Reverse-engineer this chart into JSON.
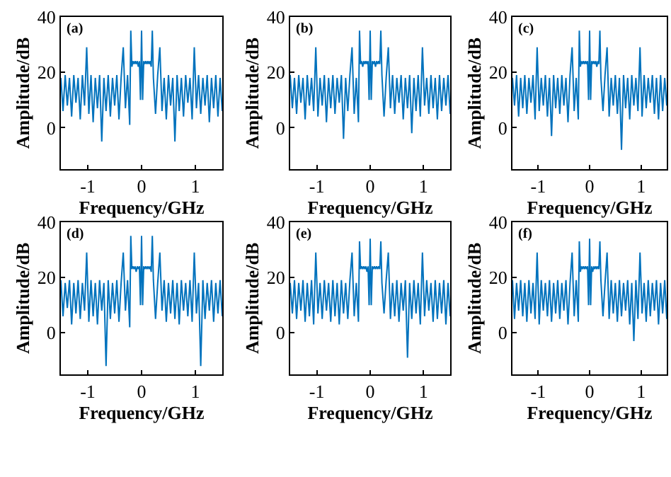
{
  "chart_data": [
    {
      "type": "line",
      "color": "#0072bd",
      "xlabel": "Frequency/GHz",
      "ylabel": "Amplitude/dB",
      "xlim": [
        -1.5,
        1.5
      ],
      "ylim": [
        -15,
        40
      ],
      "xticks": [
        -1,
        0,
        1
      ],
      "yticks": [
        0,
        20,
        40
      ],
      "annotations": [
        "(a)"
      ],
      "x": [
        -1.5,
        -1.46,
        -1.42,
        -1.38,
        -1.34,
        -1.3,
        -1.26,
        -1.22,
        -1.18,
        -1.14,
        -1.1,
        -1.06,
        -1.02,
        -0.98,
        -0.94,
        -0.9,
        -0.86,
        -0.82,
        -0.78,
        -0.74,
        -0.7,
        -0.66,
        -0.62,
        -0.58,
        -0.54,
        -0.5,
        -0.46,
        -0.42,
        -0.38,
        -0.34,
        -0.3,
        -0.26,
        -0.22,
        -0.2,
        -0.18,
        -0.16,
        -0.14,
        -0.12,
        -0.1,
        -0.08,
        -0.06,
        -0.04,
        -0.02,
        0,
        0.02,
        0.04,
        0.06,
        0.08,
        0.1,
        0.12,
        0.14,
        0.16,
        0.18,
        0.2,
        0.22,
        0.26,
        0.3,
        0.34,
        0.38,
        0.42,
        0.46,
        0.5,
        0.54,
        0.58,
        0.62,
        0.66,
        0.7,
        0.74,
        0.78,
        0.82,
        0.86,
        0.9,
        0.94,
        0.98,
        1.02,
        1.06,
        1.1,
        1.14,
        1.18,
        1.22,
        1.26,
        1.3,
        1.34,
        1.38,
        1.42,
        1.46,
        1.5
      ],
      "values": [
        18,
        6,
        19,
        8,
        18,
        4,
        19,
        9,
        18,
        3,
        19,
        8,
        29,
        5,
        19,
        2,
        18,
        7,
        19,
        -5,
        18,
        6,
        19,
        4,
        18,
        8,
        19,
        3,
        18,
        29,
        7,
        19,
        1,
        35,
        22,
        24,
        23,
        24,
        23,
        24,
        22,
        24,
        10,
        35,
        10,
        24,
        23,
        24,
        23,
        24,
        23,
        24,
        22,
        35,
        18,
        5,
        19,
        29,
        6,
        18,
        3,
        19,
        8,
        18,
        -5,
        19,
        6,
        18,
        4,
        19,
        9,
        18,
        3,
        29,
        7,
        19,
        5,
        18,
        8,
        19,
        2,
        18,
        7,
        19,
        4,
        18,
        6
      ]
    },
    {
      "type": "line",
      "color": "#0072bd",
      "xlabel": "Frequency/GHz",
      "ylabel": "Amplitude/dB",
      "xlim": [
        -1.5,
        1.5
      ],
      "ylim": [
        -15,
        40
      ],
      "xticks": [
        -1,
        0,
        1
      ],
      "yticks": [
        0,
        20,
        40
      ],
      "annotations": [
        "(b)"
      ],
      "x": [
        -1.5,
        -1.46,
        -1.42,
        -1.38,
        -1.34,
        -1.3,
        -1.26,
        -1.22,
        -1.18,
        -1.14,
        -1.1,
        -1.06,
        -1.02,
        -0.98,
        -0.94,
        -0.9,
        -0.86,
        -0.82,
        -0.78,
        -0.74,
        -0.7,
        -0.66,
        -0.62,
        -0.58,
        -0.54,
        -0.5,
        -0.46,
        -0.42,
        -0.38,
        -0.34,
        -0.3,
        -0.26,
        -0.22,
        -0.2,
        -0.18,
        -0.16,
        -0.14,
        -0.12,
        -0.1,
        -0.08,
        -0.06,
        -0.04,
        -0.02,
        0,
        0.02,
        0.04,
        0.06,
        0.08,
        0.1,
        0.12,
        0.14,
        0.16,
        0.18,
        0.2,
        0.22,
        0.26,
        0.3,
        0.34,
        0.38,
        0.42,
        0.46,
        0.5,
        0.54,
        0.58,
        0.62,
        0.66,
        0.7,
        0.74,
        0.78,
        0.82,
        0.86,
        0.9,
        0.94,
        0.98,
        1.02,
        1.06,
        1.1,
        1.14,
        1.18,
        1.22,
        1.26,
        1.3,
        1.34,
        1.38,
        1.42,
        1.46,
        1.5
      ],
      "values": [
        19,
        7,
        18,
        5,
        19,
        9,
        18,
        3,
        19,
        8,
        18,
        6,
        29,
        4,
        18,
        8,
        19,
        2,
        18,
        7,
        19,
        5,
        18,
        9,
        19,
        -4,
        18,
        6,
        19,
        29,
        5,
        18,
        2,
        35,
        23,
        24,
        22,
        24,
        23,
        24,
        23,
        24,
        10,
        35,
        10,
        24,
        23,
        24,
        22,
        24,
        23,
        24,
        23,
        35,
        19,
        4,
        18,
        29,
        7,
        19,
        5,
        18,
        9,
        19,
        3,
        18,
        7,
        19,
        -2,
        18,
        6,
        19,
        4,
        29,
        8,
        18,
        5,
        19,
        7,
        18,
        3,
        19,
        6,
        18,
        8,
        19,
        5
      ]
    },
    {
      "type": "line",
      "color": "#0072bd",
      "xlabel": "Frequency/GHz",
      "ylabel": "Amplitude/dB",
      "xlim": [
        -1.5,
        1.5
      ],
      "ylim": [
        -15,
        40
      ],
      "xticks": [
        -1,
        0,
        1
      ],
      "yticks": [
        0,
        20,
        40
      ],
      "annotations": [
        "(c)"
      ],
      "x": [
        -1.5,
        -1.46,
        -1.42,
        -1.38,
        -1.34,
        -1.3,
        -1.26,
        -1.22,
        -1.18,
        -1.14,
        -1.1,
        -1.06,
        -1.02,
        -0.98,
        -0.94,
        -0.9,
        -0.86,
        -0.82,
        -0.78,
        -0.74,
        -0.7,
        -0.66,
        -0.62,
        -0.58,
        -0.54,
        -0.5,
        -0.46,
        -0.42,
        -0.38,
        -0.34,
        -0.3,
        -0.26,
        -0.22,
        -0.2,
        -0.18,
        -0.16,
        -0.14,
        -0.12,
        -0.1,
        -0.08,
        -0.06,
        -0.04,
        -0.02,
        0,
        0.02,
        0.04,
        0.06,
        0.08,
        0.1,
        0.12,
        0.14,
        0.16,
        0.18,
        0.2,
        0.22,
        0.26,
        0.3,
        0.34,
        0.38,
        0.42,
        0.46,
        0.5,
        0.54,
        0.58,
        0.62,
        0.66,
        0.7,
        0.74,
        0.78,
        0.82,
        0.86,
        0.9,
        0.94,
        0.98,
        1.02,
        1.06,
        1.1,
        1.14,
        1.18,
        1.22,
        1.26,
        1.3,
        1.34,
        1.38,
        1.42,
        1.46,
        1.5
      ],
      "values": [
        18,
        8,
        19,
        4,
        18,
        7,
        19,
        5,
        18,
        9,
        19,
        3,
        29,
        6,
        18,
        8,
        19,
        4,
        18,
        -3,
        19,
        7,
        18,
        5,
        19,
        8,
        18,
        2,
        19,
        29,
        6,
        18,
        3,
        35,
        22,
        24,
        23,
        24,
        23,
        24,
        23,
        24,
        10,
        35,
        10,
        24,
        23,
        24,
        23,
        24,
        22,
        24,
        23,
        35,
        18,
        6,
        19,
        29,
        4,
        18,
        8,
        19,
        5,
        18,
        -8,
        19,
        7,
        18,
        3,
        19,
        8,
        18,
        6,
        29,
        4,
        19,
        7,
        18,
        9,
        19,
        5,
        18,
        3,
        19,
        6,
        18,
        8
      ]
    },
    {
      "type": "line",
      "color": "#0072bd",
      "xlabel": "Frequency/GHz",
      "ylabel": "Amplitude/dB",
      "xlim": [
        -1.5,
        1.5
      ],
      "ylim": [
        -15,
        40
      ],
      "xticks": [
        -1,
        0,
        1
      ],
      "yticks": [
        0,
        20,
        40
      ],
      "annotations": [
        "(d)"
      ],
      "x": [
        -1.5,
        -1.46,
        -1.42,
        -1.38,
        -1.34,
        -1.3,
        -1.26,
        -1.22,
        -1.18,
        -1.14,
        -1.1,
        -1.06,
        -1.02,
        -0.98,
        -0.94,
        -0.9,
        -0.86,
        -0.82,
        -0.78,
        -0.74,
        -0.7,
        -0.66,
        -0.62,
        -0.58,
        -0.54,
        -0.5,
        -0.46,
        -0.42,
        -0.38,
        -0.34,
        -0.3,
        -0.26,
        -0.22,
        -0.2,
        -0.18,
        -0.16,
        -0.14,
        -0.12,
        -0.1,
        -0.08,
        -0.06,
        -0.04,
        -0.02,
        0,
        0.02,
        0.04,
        0.06,
        0.08,
        0.1,
        0.12,
        0.14,
        0.16,
        0.18,
        0.2,
        0.22,
        0.26,
        0.3,
        0.34,
        0.38,
        0.42,
        0.46,
        0.5,
        0.54,
        0.58,
        0.62,
        0.66,
        0.7,
        0.74,
        0.78,
        0.82,
        0.86,
        0.9,
        0.94,
        0.98,
        1.02,
        1.06,
        1.1,
        1.14,
        1.18,
        1.22,
        1.26,
        1.3,
        1.34,
        1.38,
        1.42,
        1.46,
        1.5
      ],
      "values": [
        19,
        6,
        18,
        9,
        19,
        3,
        18,
        7,
        19,
        5,
        18,
        8,
        29,
        4,
        19,
        6,
        18,
        3,
        19,
        8,
        18,
        -12,
        19,
        5,
        18,
        7,
        19,
        4,
        18,
        29,
        8,
        19,
        2,
        35,
        23,
        24,
        23,
        24,
        22,
        24,
        23,
        24,
        10,
        35,
        10,
        24,
        23,
        24,
        23,
        24,
        23,
        24,
        22,
        35,
        19,
        5,
        18,
        29,
        8,
        19,
        4,
        18,
        7,
        19,
        5,
        18,
        3,
        19,
        8,
        18,
        6,
        19,
        4,
        29,
        7,
        18,
        -12,
        19,
        5,
        18,
        8,
        19,
        4,
        18,
        7,
        19,
        6
      ]
    },
    {
      "type": "line",
      "color": "#0072bd",
      "xlabel": "Frequency/GHz",
      "ylabel": "Amplitude/dB",
      "xlim": [
        -1.5,
        1.5
      ],
      "ylim": [
        -15,
        40
      ],
      "xticks": [
        -1,
        0,
        1
      ],
      "yticks": [
        0,
        20,
        40
      ],
      "annotations": [
        "(e)"
      ],
      "x": [
        -1.5,
        -1.46,
        -1.42,
        -1.38,
        -1.34,
        -1.3,
        -1.26,
        -1.22,
        -1.18,
        -1.14,
        -1.1,
        -1.06,
        -1.02,
        -0.98,
        -0.94,
        -0.9,
        -0.86,
        -0.82,
        -0.78,
        -0.74,
        -0.7,
        -0.66,
        -0.62,
        -0.58,
        -0.54,
        -0.5,
        -0.46,
        -0.42,
        -0.38,
        -0.34,
        -0.3,
        -0.26,
        -0.22,
        -0.2,
        -0.18,
        -0.16,
        -0.14,
        -0.12,
        -0.1,
        -0.08,
        -0.06,
        -0.04,
        -0.02,
        0,
        0.02,
        0.04,
        0.06,
        0.08,
        0.1,
        0.12,
        0.14,
        0.16,
        0.18,
        0.2,
        0.22,
        0.26,
        0.3,
        0.34,
        0.38,
        0.42,
        0.46,
        0.5,
        0.54,
        0.58,
        0.62,
        0.66,
        0.7,
        0.74,
        0.78,
        0.82,
        0.86,
        0.9,
        0.94,
        0.98,
        1.02,
        1.06,
        1.1,
        1.14,
        1.18,
        1.22,
        1.26,
        1.3,
        1.34,
        1.38,
        1.42,
        1.46,
        1.5
      ],
      "values": [
        18,
        7,
        19,
        5,
        18,
        8,
        19,
        4,
        18,
        6,
        19,
        3,
        29,
        7,
        18,
        5,
        19,
        8,
        18,
        4,
        19,
        6,
        18,
        3,
        19,
        7,
        18,
        5,
        19,
        29,
        6,
        18,
        4,
        33,
        23,
        24,
        23,
        24,
        23,
        24,
        22,
        24,
        10,
        34,
        10,
        24,
        23,
        24,
        23,
        24,
        23,
        24,
        23,
        33,
        18,
        7,
        19,
        29,
        5,
        18,
        6,
        19,
        4,
        18,
        8,
        19,
        -9,
        18,
        5,
        19,
        7,
        18,
        3,
        29,
        6,
        19,
        8,
        18,
        4,
        19,
        5,
        18,
        7,
        19,
        3,
        18,
        6
      ]
    },
    {
      "type": "line",
      "color": "#0072bd",
      "xlabel": "Frequency/GHz",
      "ylabel": "Amplitude/dB",
      "xlim": [
        -1.5,
        1.5
      ],
      "ylim": [
        -15,
        40
      ],
      "xticks": [
        -1,
        0,
        1
      ],
      "yticks": [
        0,
        20,
        40
      ],
      "annotations": [
        "(f)"
      ],
      "x": [
        -1.5,
        -1.46,
        -1.42,
        -1.38,
        -1.34,
        -1.3,
        -1.26,
        -1.22,
        -1.18,
        -1.14,
        -1.1,
        -1.06,
        -1.02,
        -0.98,
        -0.94,
        -0.9,
        -0.86,
        -0.82,
        -0.78,
        -0.74,
        -0.7,
        -0.66,
        -0.62,
        -0.58,
        -0.54,
        -0.5,
        -0.46,
        -0.42,
        -0.38,
        -0.34,
        -0.3,
        -0.26,
        -0.22,
        -0.2,
        -0.18,
        -0.16,
        -0.14,
        -0.12,
        -0.1,
        -0.08,
        -0.06,
        -0.04,
        -0.02,
        0,
        0.02,
        0.04,
        0.06,
        0.08,
        0.1,
        0.12,
        0.14,
        0.16,
        0.18,
        0.2,
        0.22,
        0.26,
        0.3,
        0.34,
        0.38,
        0.42,
        0.46,
        0.5,
        0.54,
        0.58,
        0.62,
        0.66,
        0.7,
        0.74,
        0.78,
        0.82,
        0.86,
        0.9,
        0.94,
        0.98,
        1.02,
        1.06,
        1.1,
        1.14,
        1.18,
        1.22,
        1.26,
        1.3,
        1.34,
        1.38,
        1.42,
        1.46,
        1.5
      ],
      "values": [
        19,
        5,
        18,
        8,
        19,
        6,
        18,
        4,
        19,
        7,
        18,
        5,
        29,
        3,
        19,
        8,
        18,
        6,
        19,
        4,
        18,
        7,
        19,
        5,
        18,
        8,
        19,
        3,
        18,
        29,
        6,
        19,
        4,
        33,
        22,
        24,
        23,
        24,
        23,
        24,
        23,
        24,
        10,
        34,
        10,
        24,
        22,
        24,
        23,
        24,
        23,
        24,
        23,
        33,
        19,
        6,
        18,
        29,
        5,
        19,
        7,
        18,
        4,
        19,
        6,
        18,
        8,
        19,
        3,
        18,
        -3,
        19,
        5,
        29,
        7,
        18,
        4,
        19,
        6,
        18,
        8,
        19,
        3,
        18,
        7,
        19,
        5
      ]
    }
  ]
}
